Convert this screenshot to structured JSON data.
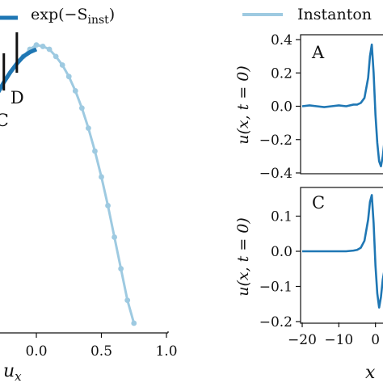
{
  "legend": [
    {
      "label": "exp(−S",
      "sub": "inst",
      "tail": ")",
      "color": "#1f77b4"
    },
    {
      "label": "Instanton",
      "color": "#9ecae1"
    }
  ],
  "chart_data": [
    {
      "type": "line",
      "xlabel": "u",
      "xlabel_sub": "x",
      "ylabel": "",
      "xlim": [
        -0.3,
        1.0
      ],
      "xticks": [
        "0.0",
        "0.5",
        "1.0"
      ],
      "xtick_values": [
        0.0,
        0.5,
        1.0
      ],
      "series": [
        {
          "name": "exp(−S_inst)",
          "color": "#1f77b4",
          "x": [
            -0.3,
            -0.25,
            -0.2,
            -0.15,
            -0.1,
            -0.05,
            0.0
          ],
          "y": [
            0.8,
            0.84,
            0.875,
            0.905,
            0.93,
            0.945,
            0.955
          ]
        },
        {
          "name": "Instanton",
          "color": "#9ecae1",
          "x": [
            -0.1,
            -0.05,
            0.0,
            0.05,
            0.1,
            0.15,
            0.2,
            0.25,
            0.3,
            0.35,
            0.4,
            0.45,
            0.5,
            0.55,
            0.6,
            0.65,
            0.7,
            0.75
          ],
          "y": [
            0.93,
            0.955,
            0.97,
            0.965,
            0.955,
            0.93,
            0.9,
            0.86,
            0.81,
            0.75,
            0.68,
            0.6,
            0.51,
            0.41,
            0.3,
            0.19,
            0.08,
            0.0
          ]
        }
      ],
      "markers": [
        {
          "label": "C",
          "x": -0.25
        },
        {
          "label": "D",
          "x": -0.15
        }
      ]
    },
    {
      "type": "line",
      "panel_label": "A",
      "ylabel": "u(x, t = 0)",
      "ylim": [
        -0.4,
        0.4
      ],
      "yticks": [
        "0.4",
        "0.2",
        "0.0",
        "−0.2",
        "−0.4"
      ],
      "ytick_values": [
        0.4,
        0.2,
        0.0,
        -0.2,
        -0.4
      ],
      "xlim": [
        -20,
        10
      ],
      "series": [
        {
          "name": "",
          "color": "#1f77b4",
          "x": [
            -20,
            -18,
            -16,
            -14,
            -12,
            -10,
            -8,
            -6,
            -5,
            -4,
            -3,
            -2,
            -1.5,
            -1,
            -0.5,
            0,
            0.5,
            1,
            1.5,
            2,
            2.5,
            3,
            4,
            5,
            6
          ],
          "y": [
            0.0,
            0.005,
            0.0,
            -0.005,
            0.0,
            0.005,
            0.0,
            0.01,
            0.01,
            0.02,
            0.05,
            0.17,
            0.3,
            0.37,
            0.2,
            -0.05,
            -0.22,
            -0.33,
            -0.36,
            -0.3,
            -0.2,
            -0.12,
            -0.05,
            -0.02,
            -0.01
          ]
        }
      ]
    },
    {
      "type": "line",
      "panel_label": "C",
      "ylabel": "u(x, t = 0)",
      "ylim": [
        -0.2,
        0.2
      ],
      "yticks": [
        "0.1",
        "0.0",
        "−0.1",
        "−0.2"
      ],
      "ytick_values": [
        0.1,
        0.0,
        -0.1,
        -0.2
      ],
      "xlim": [
        -20,
        10
      ],
      "xticks": [
        "−20",
        "−10",
        "0"
      ],
      "xtick_values": [
        -20,
        -10,
        0
      ],
      "xlabel": "x",
      "series": [
        {
          "name": "",
          "color": "#1f77b4",
          "x": [
            -20,
            -18,
            -16,
            -14,
            -12,
            -10,
            -8,
            -6,
            -5,
            -4,
            -3,
            -2,
            -1.5,
            -1,
            -0.5,
            0,
            0.5,
            1,
            1.5,
            2,
            2.5,
            3,
            4,
            5,
            6
          ],
          "y": [
            0.0,
            0.0,
            0.0,
            0.0,
            0.0,
            0.0,
            0.0,
            0.002,
            0.004,
            0.01,
            0.03,
            0.09,
            0.14,
            0.16,
            0.08,
            -0.04,
            -0.12,
            -0.16,
            -0.13,
            -0.08,
            -0.05,
            -0.03,
            -0.01,
            0.0,
            0.0
          ]
        }
      ]
    }
  ]
}
